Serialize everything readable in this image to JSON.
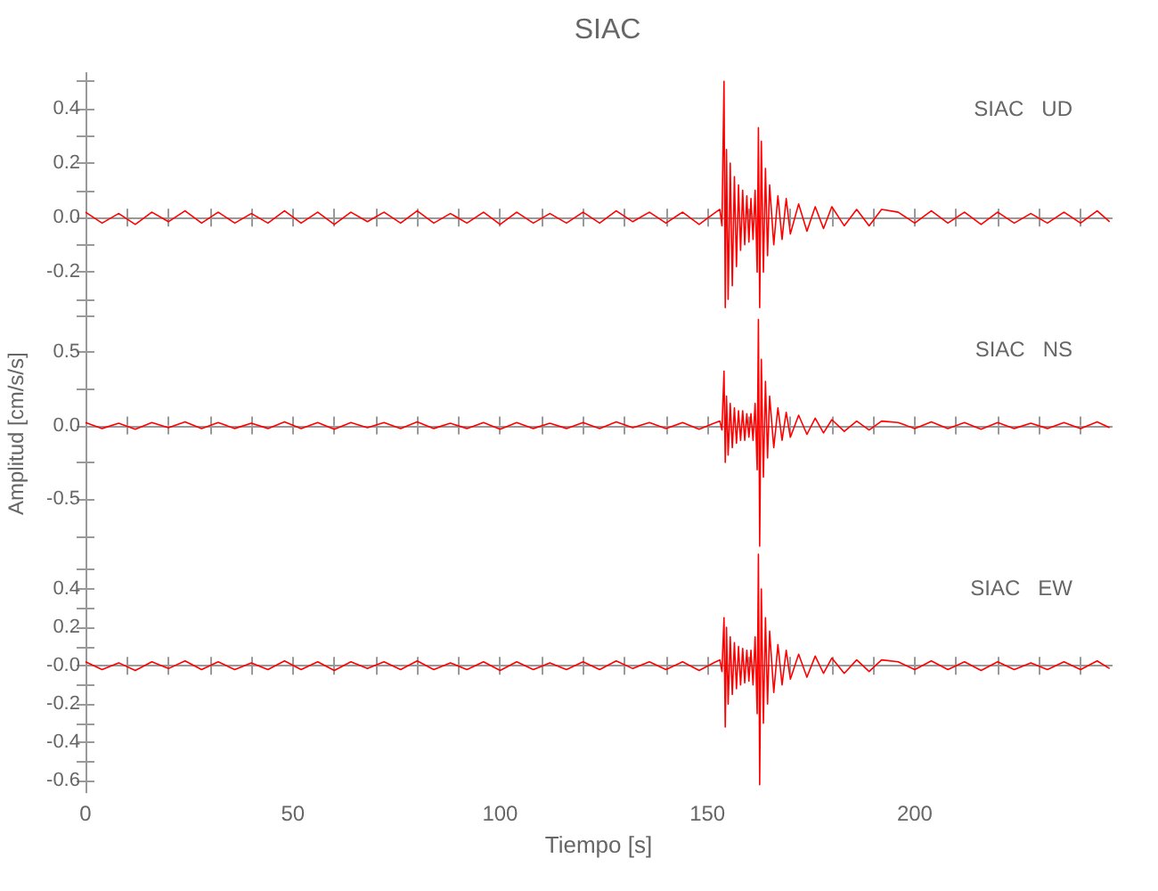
{
  "chart_data": [
    {
      "type": "line",
      "title": "SIAC",
      "annotations": [
        "SIAC UD"
      ],
      "marker": "none",
      "tick_labels": "y",
      "xlim": [
        0,
        247.5
      ],
      "xticks": [
        0,
        {
          "value": 10,
          "label": null
        },
        {
          "value": 20,
          "label": null
        },
        {
          "value": 30,
          "label": null
        },
        {
          "value": 40,
          "label": null
        },
        50,
        {
          "value": 60,
          "label": null
        },
        {
          "value": 70,
          "label": null
        },
        {
          "value": 80,
          "label": null
        },
        {
          "value": 90,
          "label": null
        },
        100,
        {
          "value": 110,
          "label": null
        },
        {
          "value": 120,
          "label": null
        },
        {
          "value": 130,
          "label": null
        },
        {
          "value": 140,
          "label": null
        },
        150,
        {
          "value": 160,
          "label": null
        },
        {
          "value": 170,
          "label": null
        },
        {
          "value": 180,
          "label": null
        },
        {
          "value": 190,
          "label": null
        },
        200,
        {
          "value": 210,
          "label": null
        },
        {
          "value": 220,
          "label": null
        },
        {
          "value": 230,
          "label": null
        },
        {
          "value": 240,
          "label": null
        }
      ],
      "ylim": [
        -0.35,
        0.53
      ],
      "yticks": [
        {
          "value": -0.3,
          "label": null
        },
        -0.2,
        {
          "value": -0.1,
          "label": null
        },
        {
          "value": 0,
          "label": "0.0"
        },
        {
          "value": 0.1,
          "label": null
        },
        0.2,
        {
          "value": 0.3,
          "label": null
        },
        0.4,
        {
          "value": 0.5,
          "label": null
        }
      ],
      "x": [
        0,
        4,
        8,
        12,
        16,
        20,
        24,
        28,
        32,
        36,
        40,
        44,
        48,
        52,
        56,
        60,
        64,
        68,
        72,
        76,
        80,
        84,
        88,
        92,
        96,
        100,
        104,
        108,
        112,
        116,
        120,
        124,
        128,
        132,
        136,
        140,
        144,
        148,
        152,
        153,
        153.5,
        154,
        154.3,
        154.6,
        155,
        155.5,
        156,
        156.5,
        157,
        157.5,
        158,
        158.5,
        159,
        159.5,
        160,
        160.5,
        161,
        161.5,
        162,
        162.3,
        162.6,
        163,
        163.5,
        164,
        164.5,
        165,
        166,
        167,
        168,
        169,
        170,
        172,
        174,
        176,
        178,
        180,
        183,
        186,
        189,
        192,
        196,
        200,
        204,
        208,
        212,
        216,
        220,
        224,
        228,
        232,
        236,
        240,
        244,
        247
      ],
      "series": [
        {
          "color": "#ff0000",
          "values": [
            0.02,
            -0.02,
            0.015,
            -0.025,
            0.02,
            -0.015,
            0.025,
            -0.02,
            0.02,
            -0.02,
            0.015,
            -0.02,
            0.025,
            -0.02,
            0.02,
            -0.025,
            0.02,
            -0.015,
            0.02,
            -0.02,
            0.025,
            -0.02,
            0.015,
            -0.02,
            0.02,
            -0.025,
            0.02,
            -0.02,
            0.015,
            -0.02,
            0.02,
            -0.02,
            0.025,
            -0.015,
            0.02,
            -0.02,
            0.02,
            -0.025,
            0.02,
            0.03,
            -0.03,
            0.5,
            -0.33,
            0.25,
            -0.3,
            0.2,
            -0.25,
            0.15,
            -0.18,
            0.12,
            -0.12,
            0.1,
            -0.1,
            0.08,
            -0.09,
            0.07,
            -0.08,
            0.1,
            -0.2,
            0.33,
            -0.33,
            0.28,
            -0.2,
            0.18,
            -0.14,
            0.12,
            -0.1,
            0.08,
            -0.08,
            0.07,
            -0.06,
            0.05,
            -0.05,
            0.04,
            -0.04,
            0.04,
            -0.03,
            0.03,
            -0.03,
            0.03,
            0.02,
            -0.02,
            0.025,
            -0.02,
            0.02,
            -0.025,
            0.02,
            -0.02,
            0.015,
            -0.02,
            0.02,
            -0.02,
            0.025,
            -0.015
          ]
        }
      ]
    },
    {
      "type": "line",
      "ylabel": "Amplitud [cm/s/s]",
      "annotations": [
        "SIAC NS"
      ],
      "marker": "none",
      "tick_labels": "y",
      "xlim": [
        0,
        247.5
      ],
      "xticks": [
        0,
        {
          "value": 10,
          "label": null
        },
        {
          "value": 20,
          "label": null
        },
        {
          "value": 30,
          "label": null
        },
        {
          "value": 40,
          "label": null
        },
        50,
        {
          "value": 60,
          "label": null
        },
        {
          "value": 70,
          "label": null
        },
        {
          "value": 80,
          "label": null
        },
        {
          "value": 90,
          "label": null
        },
        100,
        {
          "value": 110,
          "label": null
        },
        {
          "value": 120,
          "label": null
        },
        {
          "value": 130,
          "label": null
        },
        {
          "value": 140,
          "label": null
        },
        150,
        {
          "value": 160,
          "label": null
        },
        {
          "value": 170,
          "label": null
        },
        {
          "value": 180,
          "label": null
        },
        {
          "value": 190,
          "label": null
        },
        200,
        {
          "value": 210,
          "label": null
        },
        {
          "value": 220,
          "label": null
        },
        {
          "value": 230,
          "label": null
        },
        {
          "value": 240,
          "label": null
        }
      ],
      "ylim": [
        -0.87,
        0.76
      ],
      "yticks": [
        {
          "value": -0.75,
          "label": null
        },
        -0.5,
        {
          "value": -0.25,
          "label": null
        },
        {
          "value": 0,
          "label": "0.0"
        },
        {
          "value": 0.25,
          "label": null
        },
        0.5,
        {
          "value": 0.75,
          "label": null
        }
      ],
      "x": [
        0,
        4,
        8,
        12,
        16,
        20,
        24,
        28,
        32,
        36,
        40,
        44,
        48,
        52,
        56,
        60,
        64,
        68,
        72,
        76,
        80,
        84,
        88,
        92,
        96,
        100,
        104,
        108,
        112,
        116,
        120,
        124,
        128,
        132,
        136,
        140,
        144,
        148,
        152,
        153,
        153.5,
        154,
        154.3,
        154.6,
        155,
        155.5,
        156,
        156.5,
        157,
        157.5,
        158,
        158.5,
        159,
        159.5,
        160,
        160.5,
        161,
        161.5,
        162,
        162.3,
        162.6,
        163,
        163.5,
        164,
        164.5,
        165,
        166,
        167,
        168,
        169,
        170,
        172,
        174,
        176,
        178,
        180,
        183,
        186,
        189,
        192,
        196,
        200,
        204,
        208,
        212,
        216,
        220,
        224,
        228,
        232,
        236,
        240,
        244,
        247
      ],
      "series": [
        {
          "color": "#ff0000",
          "values": [
            0.02,
            -0.02,
            0.015,
            -0.025,
            0.02,
            -0.015,
            0.025,
            -0.02,
            0.02,
            -0.02,
            0.015,
            -0.02,
            0.025,
            -0.02,
            0.02,
            -0.025,
            0.02,
            -0.015,
            0.02,
            -0.02,
            0.025,
            -0.02,
            0.015,
            -0.02,
            0.02,
            -0.025,
            0.02,
            -0.02,
            0.015,
            -0.02,
            0.02,
            -0.02,
            0.025,
            -0.015,
            0.02,
            -0.02,
            0.02,
            -0.025,
            0.02,
            0.03,
            -0.03,
            0.37,
            -0.25,
            0.2,
            -0.2,
            0.15,
            -0.15,
            0.12,
            -0.12,
            0.1,
            -0.1,
            0.1,
            -0.1,
            0.08,
            -0.08,
            0.08,
            -0.1,
            0.15,
            -0.3,
            0.72,
            -0.82,
            0.45,
            -0.35,
            0.3,
            -0.22,
            0.2,
            -0.15,
            0.12,
            -0.1,
            0.09,
            -0.08,
            0.07,
            -0.06,
            0.05,
            -0.05,
            0.04,
            -0.04,
            0.03,
            -0.03,
            0.03,
            0.02,
            -0.02,
            0.025,
            -0.02,
            0.02,
            -0.025,
            0.02,
            -0.02,
            0.015,
            -0.02,
            0.02,
            -0.02,
            0.025,
            -0.015
          ]
        }
      ]
    },
    {
      "type": "line",
      "xlabel": "Tiempo [s]",
      "annotations": [
        "SIAC EW"
      ],
      "marker": "none",
      "xlim": [
        0,
        247.5
      ],
      "xticks": [
        0,
        {
          "value": 10,
          "label": null
        },
        {
          "value": 20,
          "label": null
        },
        {
          "value": 30,
          "label": null
        },
        {
          "value": 40,
          "label": null
        },
        50,
        {
          "value": 60,
          "label": null
        },
        {
          "value": 70,
          "label": null
        },
        {
          "value": 80,
          "label": null
        },
        {
          "value": 90,
          "label": null
        },
        100,
        {
          "value": 110,
          "label": null
        },
        {
          "value": 120,
          "label": null
        },
        {
          "value": 130,
          "label": null
        },
        {
          "value": 140,
          "label": null
        },
        150,
        {
          "value": 160,
          "label": null
        },
        {
          "value": 170,
          "label": null
        },
        {
          "value": 180,
          "label": null
        },
        {
          "value": 190,
          "label": null
        },
        200,
        {
          "value": 210,
          "label": null
        },
        {
          "value": 220,
          "label": null
        },
        {
          "value": 230,
          "label": null
        },
        {
          "value": 240,
          "label": null
        }
      ],
      "ylim": [
        -0.66,
        0.59
      ],
      "yticks": [
        -0.6,
        {
          "value": -0.5,
          "label": null
        },
        -0.4,
        {
          "value": -0.3,
          "label": null
        },
        -0.2,
        {
          "value": -0.1,
          "label": null
        },
        {
          "value": 0,
          "label": "-0.0"
        },
        {
          "value": 0.1,
          "label": null
        },
        0.2,
        {
          "value": 0.3,
          "label": null
        },
        0.4,
        {
          "value": 0.5,
          "label": null
        }
      ],
      "x": [
        0,
        4,
        8,
        12,
        16,
        20,
        24,
        28,
        32,
        36,
        40,
        44,
        48,
        52,
        56,
        60,
        64,
        68,
        72,
        76,
        80,
        84,
        88,
        92,
        96,
        100,
        104,
        108,
        112,
        116,
        120,
        124,
        128,
        132,
        136,
        140,
        144,
        148,
        152,
        153,
        153.5,
        154,
        154.3,
        154.6,
        155,
        155.5,
        156,
        156.5,
        157,
        157.5,
        158,
        158.5,
        159,
        159.5,
        160,
        160.5,
        161,
        161.5,
        162,
        162.3,
        162.6,
        163,
        163.5,
        164,
        164.5,
        165,
        166,
        167,
        168,
        169,
        170,
        172,
        174,
        176,
        178,
        180,
        183,
        186,
        189,
        192,
        196,
        200,
        204,
        208,
        212,
        216,
        220,
        224,
        228,
        232,
        236,
        240,
        244,
        247
      ],
      "series": [
        {
          "color": "#ff0000",
          "values": [
            0.02,
            -0.02,
            0.015,
            -0.025,
            0.02,
            -0.015,
            0.025,
            -0.02,
            0.02,
            -0.02,
            0.015,
            -0.02,
            0.025,
            -0.02,
            0.02,
            -0.025,
            0.02,
            -0.015,
            0.02,
            -0.02,
            0.025,
            -0.02,
            0.015,
            -0.02,
            0.02,
            -0.025,
            0.02,
            -0.02,
            0.015,
            -0.02,
            0.02,
            -0.02,
            0.025,
            -0.015,
            0.02,
            -0.02,
            0.02,
            -0.025,
            0.02,
            0.03,
            -0.03,
            0.25,
            -0.32,
            0.2,
            -0.2,
            0.15,
            -0.15,
            0.12,
            -0.12,
            0.1,
            -0.1,
            0.09,
            -0.09,
            0.08,
            -0.08,
            0.08,
            -0.1,
            0.15,
            -0.25,
            0.58,
            -0.62,
            0.4,
            -0.3,
            0.25,
            -0.2,
            0.18,
            -0.14,
            0.11,
            -0.1,
            0.08,
            -0.07,
            0.06,
            -0.06,
            0.05,
            -0.04,
            0.04,
            -0.04,
            0.03,
            -0.03,
            0.03,
            0.02,
            -0.02,
            0.025,
            -0.02,
            0.02,
            -0.025,
            0.02,
            -0.02,
            0.015,
            -0.02,
            0.02,
            -0.02,
            0.025,
            -0.015
          ]
        }
      ]
    }
  ]
}
